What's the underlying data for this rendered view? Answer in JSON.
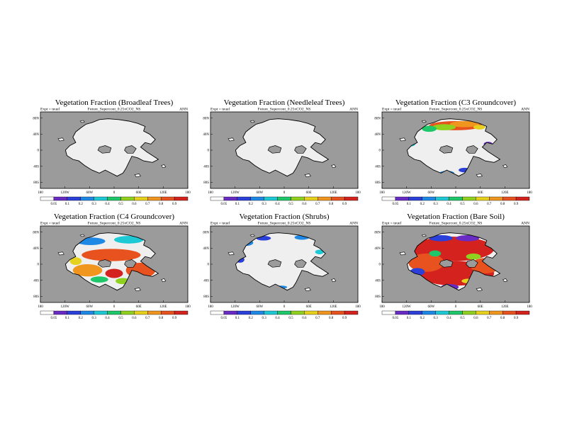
{
  "chart_data": [
    {
      "type": "heatmap",
      "title": "Vegetation Fraction (Broadleaf Trees)",
      "expt_label": "Expt = teuef",
      "run_label": "Future_Supercont_0.25xCO2_NS",
      "period_label": "ANN",
      "cover_level": 0.0,
      "pattern": "none",
      "grid": false
    },
    {
      "type": "heatmap",
      "title": "Vegetation Fraction (Needleleaf Trees)",
      "expt_label": "Expt = teuef",
      "run_label": "Future_Supercont_0.25xCO2_NS",
      "period_label": "ANN",
      "cover_level": 0.0,
      "pattern": "none",
      "grid": false
    },
    {
      "type": "heatmap",
      "title": "Vegetation Fraction (C3 Groundcover)",
      "expt_label": "Expt = teuef",
      "run_label": "Future_Supercont_0.25xCO2_NS",
      "period_label": "ANN",
      "cover_level": 0.5,
      "pattern": "c3",
      "grid": false
    },
    {
      "type": "heatmap",
      "title": "Vegetation Fraction (C4 Groundcover)",
      "expt_label": "Expt = teuef",
      "run_label": "Future_Supercont_0.25xCO2_NS",
      "period_label": "ANN",
      "cover_level": 0.8,
      "pattern": "c4",
      "grid": false
    },
    {
      "type": "heatmap",
      "title": "Vegetation Fraction (Shrubs)",
      "expt_label": "Expt = teuef",
      "run_label": "Future_Supercont_0.25xCO2_NS",
      "period_label": "ANN",
      "cover_level": 0.1,
      "pattern": "shrubs",
      "grid": false
    },
    {
      "type": "heatmap",
      "title": "Vegetation Fraction (Bare Soil)",
      "expt_label": "Expt = teuef",
      "run_label": "Future_Supercont_0.25xCO2_NS",
      "period_label": "ANN",
      "cover_level": 0.9,
      "pattern": "bare",
      "grid": false
    }
  ],
  "shared_axes": {
    "x_ticks": [
      "180",
      "120W",
      "60W",
      "0",
      "60E",
      "120E",
      "180"
    ],
    "y_ticks": [
      "80N",
      "40N",
      "0",
      "40S",
      "80S"
    ],
    "xlim": [
      -180,
      180
    ],
    "ylim": [
      -90,
      90
    ]
  },
  "colorbar": {
    "levels": [
      "0.05",
      "0.1",
      "0.2",
      "0.3",
      "0.4",
      "0.5",
      "0.6",
      "0.7",
      "0.8",
      "0.9"
    ],
    "colors": [
      "#ffffff",
      "#6a2bc4",
      "#2b3fd9",
      "#1e88e5",
      "#1ec9d6",
      "#1ec76a",
      "#8fd11e",
      "#e6d21e",
      "#f0961e",
      "#e8521e",
      "#d4231e"
    ]
  },
  "colors": {
    "ocean": "#9b9b9b",
    "land_empty": "#efefef",
    "coast": "#000000"
  }
}
